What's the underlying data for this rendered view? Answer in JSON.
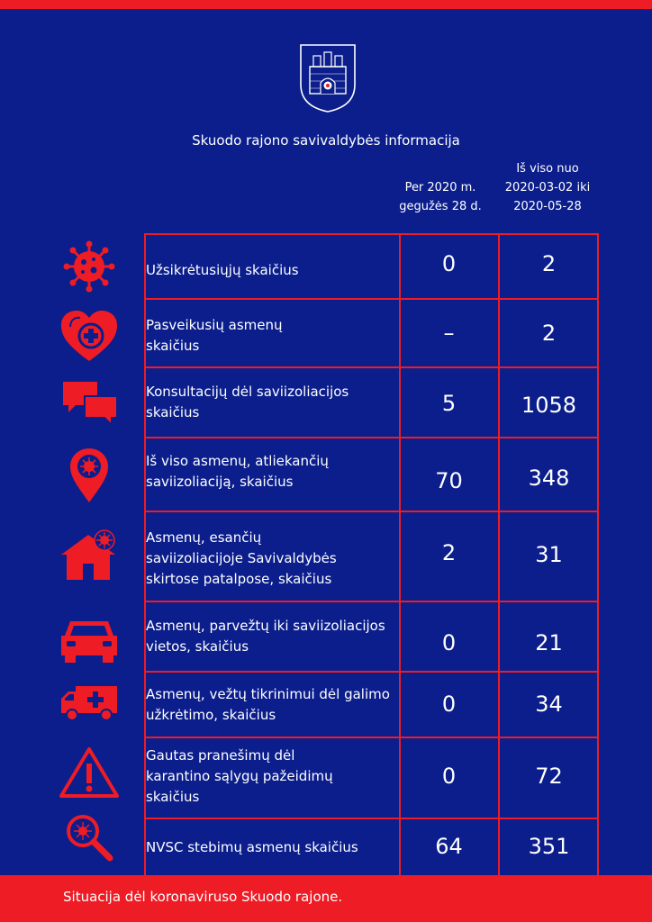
{
  "title": "Skuodo rajono savivaldybės informacija",
  "columns": {
    "col1_line1": "Per 2020 m.",
    "col1_line2": "gegužės 28 d.",
    "col2_line1": "Iš viso nuo",
    "col2_line2": "2020-03-02 iki",
    "col2_line3": "2020-05-28"
  },
  "rows": [
    {
      "icon": "virus-icon",
      "label": [
        "Užsikrėtusiųjų skaičius"
      ],
      "day": "0",
      "total": "2"
    },
    {
      "icon": "heart-medical-icon",
      "label": [
        "Pasveikusių asmenų",
        "skaičius"
      ],
      "day": "–",
      "total": "2"
    },
    {
      "icon": "chat-bubbles-icon",
      "label": [
        "Konsultacijų dėl saviizoliacijos",
        "skaičius"
      ],
      "day": "5",
      "total": "1058"
    },
    {
      "icon": "location-pin-virus-icon",
      "label": [
        "Iš viso asmenų, atliekančių",
        "saviizoliaciją, skaičius"
      ],
      "day": "70",
      "total": "348"
    },
    {
      "icon": "house-virus-icon",
      "label": [
        "Asmenų, esančių",
        "saviizoliacijoje Savivaldybės",
        "skirtose patalpose, skaičius"
      ],
      "day": "2",
      "total": "31"
    },
    {
      "icon": "car-icon",
      "label": [
        "Asmenų, parvežtų iki saviizoliacijos",
        "vietos, skaičius"
      ],
      "day": "0",
      "total": "21"
    },
    {
      "icon": "ambulance-icon",
      "label": [
        "Asmenų, vežtų tikrinimui dėl galimo",
        "užkrėtimo, skaičius"
      ],
      "day": "0",
      "total": "34"
    },
    {
      "icon": "warning-icon",
      "label": [
        "Gautas pranešimų dėl",
        "karantino sąlygų pažeidimų",
        "skaičius"
      ],
      "day": "0",
      "total": "72"
    },
    {
      "icon": "magnifier-virus-icon",
      "label": [
        "NVSC stebimų asmenų skaičius"
      ],
      "day": "64",
      "total": "351"
    }
  ],
  "footer": "Situacija dėl koronaviruso Skuodo rajone.",
  "colors": {
    "background": "#0b1e8c",
    "accent": "#ee1c25",
    "text": "#ffffff"
  }
}
